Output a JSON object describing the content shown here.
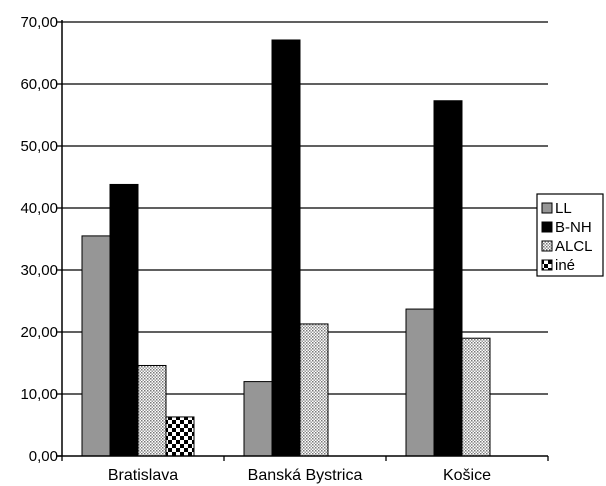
{
  "chart_data": {
    "type": "bar",
    "categories": [
      "Bratislava",
      "Banská Bystrica",
      "Košice"
    ],
    "series": [
      {
        "name": "LL",
        "values": [
          35.5,
          12.0,
          23.7
        ],
        "pattern": "gray"
      },
      {
        "name": "B-NH",
        "values": [
          43.8,
          67.1,
          57.3
        ],
        "pattern": "black"
      },
      {
        "name": "ALCL",
        "values": [
          14.6,
          21.3,
          19.0
        ],
        "pattern": "dots"
      },
      {
        "name": "iné",
        "values": [
          6.3,
          0,
          0
        ],
        "pattern": "checker"
      }
    ],
    "yticks": [
      "0,00",
      "10,00",
      "20,00",
      "30,00",
      "40,00",
      "50,00",
      "60,00",
      "70,00"
    ],
    "ylim": [
      0,
      70
    ],
    "grid": true,
    "legend_position": "right",
    "colors": {
      "gray": "#969696",
      "black": "#000000",
      "dots": "#cfcfcf",
      "checker": "#000000"
    }
  }
}
